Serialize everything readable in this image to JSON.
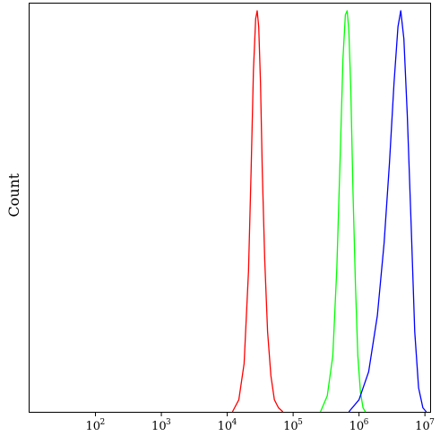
{
  "chart_data": {
    "type": "line",
    "title": "",
    "xlabel": "",
    "ylabel": "Count",
    "x_scale": "log10",
    "xlim": [
      10,
      12000000
    ],
    "ylim": [
      0,
      1
    ],
    "grid": false,
    "legend": "none",
    "x_ticks": [
      {
        "value": 100,
        "label": "10",
        "exp": "2"
      },
      {
        "value": 1000,
        "label": "10",
        "exp": "3"
      },
      {
        "value": 10000,
        "label": "10",
        "exp": "4"
      },
      {
        "value": 100000,
        "label": "10",
        "exp": "5"
      },
      {
        "value": 1000000,
        "label": "10",
        "exp": "6"
      },
      {
        "value": 10000000,
        "label": "10",
        "exp": "7"
      }
    ],
    "series": [
      {
        "color": "#ff0000",
        "x": [
          12000,
          15000,
          18000,
          21000,
          23000,
          25000,
          27000,
          28500,
          30000,
          32000,
          34000,
          37000,
          41000,
          46000,
          52000,
          60000,
          70000
        ],
        "y": [
          0.0,
          0.03,
          0.12,
          0.35,
          0.6,
          0.85,
          0.98,
          1.0,
          0.96,
          0.82,
          0.6,
          0.38,
          0.2,
          0.09,
          0.03,
          0.01,
          0.0
        ]
      },
      {
        "color": "#00ff00",
        "x": [
          260000,
          330000,
          400000,
          460000,
          520000,
          570000,
          620000,
          660000,
          700000,
          750000,
          810000,
          880000,
          960000,
          1050000,
          1150000,
          1250000
        ],
        "y": [
          0.0,
          0.04,
          0.14,
          0.36,
          0.65,
          0.88,
          0.99,
          1.0,
          0.95,
          0.8,
          0.55,
          0.32,
          0.14,
          0.05,
          0.01,
          0.0
        ]
      },
      {
        "color": "#0000ff",
        "x": [
          700000,
          1000000,
          1400000,
          1900000,
          2400000,
          2900000,
          3400000,
          3900000,
          4300000,
          4800000,
          5400000,
          6200000,
          7000000,
          8000000,
          9300000,
          10500000
        ],
        "y": [
          0.0,
          0.03,
          0.1,
          0.24,
          0.42,
          0.62,
          0.82,
          0.96,
          1.0,
          0.93,
          0.74,
          0.46,
          0.2,
          0.06,
          0.01,
          0.0
        ]
      }
    ]
  }
}
